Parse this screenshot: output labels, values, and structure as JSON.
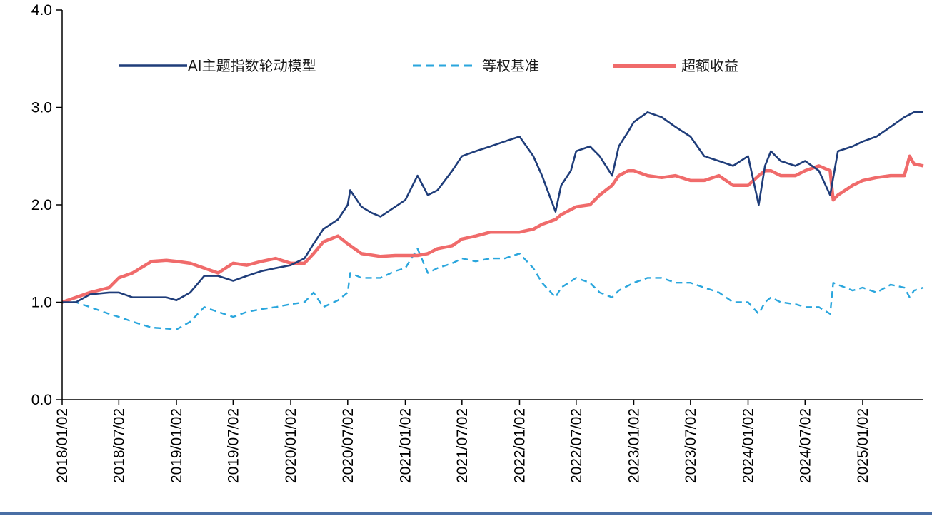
{
  "chart_data": {
    "type": "line",
    "title": "",
    "xlabel": "",
    "ylabel": "",
    "ylim": [
      0,
      4
    ],
    "y_ticks": [
      "0.0",
      "1.0",
      "2.0",
      "3.0",
      "4.0"
    ],
    "x_tick_labels": [
      "2018/01/02",
      "2018/07/02",
      "2019/01/02",
      "2019/07/02",
      "2020/01/02",
      "2020/07/02",
      "2021/01/02",
      "2021/07/02",
      "2022/01/02",
      "2022/07/02",
      "2023/01/02",
      "2023/07/02",
      "2024/01/02",
      "2024/07/02",
      "2025/01/02"
    ],
    "x_range": [
      "2018/01/02",
      "2025/07/15"
    ],
    "grid": false,
    "legend_position": "top",
    "series": [
      {
        "name": "AI主题指数轮动模型",
        "color": "#1f3d7a",
        "style": "solid",
        "x": [
          "2018/01/02",
          "2018/02/15",
          "2018/04/01",
          "2018/06/01",
          "2018/07/02",
          "2018/08/15",
          "2018/10/15",
          "2018/12/01",
          "2019/01/02",
          "2019/02/15",
          "2019/04/01",
          "2019/05/15",
          "2019/07/02",
          "2019/08/15",
          "2019/10/01",
          "2019/11/15",
          "2020/01/02",
          "2020/02/15",
          "2020/03/15",
          "2020/04/15",
          "2020/06/01",
          "2020/07/02",
          "2020/07/10",
          "2020/08/15",
          "2020/09/15",
          "2020/10/15",
          "2020/12/01",
          "2021/01/02",
          "2021/02/10",
          "2021/03/15",
          "2021/04/15",
          "2021/06/01",
          "2021/07/02",
          "2021/08/15",
          "2021/10/01",
          "2021/11/15",
          "2022/01/02",
          "2022/02/15",
          "2022/03/15",
          "2022/04/27",
          "2022/05/15",
          "2022/06/15",
          "2022/07/02",
          "2022/08/15",
          "2022/09/15",
          "2022/10/25",
          "2022/11/15",
          "2022/12/15",
          "2023/01/02",
          "2023/02/15",
          "2023/04/01",
          "2023/05/15",
          "2023/07/02",
          "2023/08/15",
          "2023/10/01",
          "2023/11/15",
          "2024/01/02",
          "2024/02/05",
          "2024/02/25",
          "2024/03/15",
          "2024/04/15",
          "2024/06/01",
          "2024/07/02",
          "2024/08/15",
          "2024/09/20",
          "2024/10/15",
          "2024/12/01",
          "2025/01/02",
          "2025/02/15",
          "2025/04/01",
          "2025/05/15",
          "2025/06/15",
          "2025/07/15"
        ],
        "values": [
          1.0,
          1.0,
          1.08,
          1.1,
          1.1,
          1.05,
          1.05,
          1.05,
          1.02,
          1.1,
          1.27,
          1.27,
          1.22,
          1.27,
          1.32,
          1.35,
          1.38,
          1.45,
          1.6,
          1.75,
          1.85,
          2.0,
          2.15,
          1.98,
          1.92,
          1.88,
          1.98,
          2.05,
          2.3,
          2.1,
          2.15,
          2.35,
          2.5,
          2.55,
          2.6,
          2.65,
          2.7,
          2.5,
          2.3,
          1.93,
          2.2,
          2.35,
          2.55,
          2.6,
          2.5,
          2.3,
          2.6,
          2.75,
          2.85,
          2.95,
          2.9,
          2.8,
          2.7,
          2.5,
          2.45,
          2.4,
          2.5,
          2.0,
          2.4,
          2.55,
          2.45,
          2.4,
          2.45,
          2.35,
          2.1,
          2.55,
          2.6,
          2.65,
          2.7,
          2.8,
          2.9,
          2.95,
          2.95
        ]
      },
      {
        "name": "等权基准",
        "color": "#2aa6dd",
        "style": "dashed",
        "x": [
          "2018/01/02",
          "2018/02/15",
          "2018/04/01",
          "2018/06/01",
          "2018/07/02",
          "2018/08/15",
          "2018/10/15",
          "2018/12/01",
          "2019/01/02",
          "2019/02/15",
          "2019/04/01",
          "2019/05/15",
          "2019/07/02",
          "2019/08/15",
          "2019/10/01",
          "2019/11/15",
          "2020/01/02",
          "2020/02/15",
          "2020/03/15",
          "2020/04/15",
          "2020/06/01",
          "2020/07/02",
          "2020/07/10",
          "2020/08/15",
          "2020/10/15",
          "2020/12/01",
          "2021/01/02",
          "2021/02/10",
          "2021/03/15",
          "2021/04/15",
          "2021/06/01",
          "2021/07/02",
          "2021/08/15",
          "2021/10/01",
          "2021/11/15",
          "2022/01/02",
          "2022/02/15",
          "2022/03/15",
          "2022/04/27",
          "2022/05/15",
          "2022/07/02",
          "2022/08/15",
          "2022/09/15",
          "2022/10/25",
          "2022/11/15",
          "2023/01/02",
          "2023/02/15",
          "2023/04/01",
          "2023/05/15",
          "2023/07/02",
          "2023/08/15",
          "2023/10/01",
          "2023/11/15",
          "2024/01/02",
          "2024/02/05",
          "2024/02/25",
          "2024/03/15",
          "2024/04/15",
          "2024/06/01",
          "2024/07/02",
          "2024/08/15",
          "2024/09/20",
          "2024/09/30",
          "2024/10/15",
          "2024/12/01",
          "2025/01/02",
          "2025/02/15",
          "2025/04/01",
          "2025/05/15",
          "2025/06/01",
          "2025/06/15",
          "2025/07/15"
        ],
        "values": [
          1.0,
          1.0,
          0.95,
          0.88,
          0.85,
          0.8,
          0.74,
          0.73,
          0.72,
          0.8,
          0.95,
          0.9,
          0.85,
          0.9,
          0.93,
          0.95,
          0.98,
          1.0,
          1.1,
          0.95,
          1.02,
          1.1,
          1.3,
          1.25,
          1.25,
          1.32,
          1.35,
          1.55,
          1.3,
          1.35,
          1.4,
          1.45,
          1.42,
          1.45,
          1.45,
          1.5,
          1.35,
          1.2,
          1.05,
          1.15,
          1.25,
          1.2,
          1.1,
          1.05,
          1.12,
          1.2,
          1.25,
          1.25,
          1.2,
          1.2,
          1.15,
          1.1,
          1.0,
          1.0,
          0.88,
          1.0,
          1.05,
          1.0,
          0.98,
          0.95,
          0.95,
          0.88,
          1.2,
          1.18,
          1.12,
          1.15,
          1.1,
          1.18,
          1.15,
          1.05,
          1.12,
          1.15
        ]
      },
      {
        "name": "超额收益",
        "color": "#f06b6b",
        "style": "solid",
        "x": [
          "2018/01/02",
          "2018/02/15",
          "2018/04/01",
          "2018/06/01",
          "2018/07/02",
          "2018/08/15",
          "2018/10/15",
          "2018/12/01",
          "2019/01/02",
          "2019/02/15",
          "2019/04/01",
          "2019/05/15",
          "2019/07/02",
          "2019/08/15",
          "2019/10/01",
          "2019/11/15",
          "2020/01/02",
          "2020/02/15",
          "2020/03/15",
          "2020/04/15",
          "2020/06/01",
          "2020/07/02",
          "2020/08/15",
          "2020/10/15",
          "2020/12/01",
          "2021/01/02",
          "2021/02/10",
          "2021/03/15",
          "2021/04/15",
          "2021/06/01",
          "2021/07/02",
          "2021/08/15",
          "2021/10/01",
          "2021/11/15",
          "2022/01/02",
          "2022/02/15",
          "2022/03/15",
          "2022/04/27",
          "2022/05/15",
          "2022/07/02",
          "2022/08/15",
          "2022/09/15",
          "2022/10/25",
          "2022/11/15",
          "2022/12/15",
          "2023/01/02",
          "2023/02/15",
          "2023/04/01",
          "2023/05/15",
          "2023/07/02",
          "2023/08/15",
          "2023/10/01",
          "2023/11/15",
          "2024/01/02",
          "2024/02/05",
          "2024/02/25",
          "2024/03/15",
          "2024/04/15",
          "2024/06/01",
          "2024/07/02",
          "2024/08/15",
          "2024/09/20",
          "2024/09/30",
          "2024/10/15",
          "2024/12/01",
          "2025/01/02",
          "2025/02/15",
          "2025/04/01",
          "2025/05/15",
          "2025/06/01",
          "2025/06/15",
          "2025/07/15"
        ],
        "values": [
          1.0,
          1.05,
          1.1,
          1.15,
          1.25,
          1.3,
          1.42,
          1.43,
          1.42,
          1.4,
          1.35,
          1.3,
          1.4,
          1.38,
          1.42,
          1.45,
          1.4,
          1.4,
          1.5,
          1.62,
          1.68,
          1.6,
          1.5,
          1.47,
          1.48,
          1.48,
          1.48,
          1.5,
          1.55,
          1.58,
          1.65,
          1.68,
          1.72,
          1.72,
          1.72,
          1.75,
          1.8,
          1.85,
          1.9,
          1.98,
          2.0,
          2.1,
          2.2,
          2.3,
          2.35,
          2.35,
          2.3,
          2.28,
          2.3,
          2.25,
          2.25,
          2.3,
          2.2,
          2.2,
          2.3,
          2.35,
          2.35,
          2.3,
          2.3,
          2.35,
          2.4,
          2.35,
          2.05,
          2.1,
          2.2,
          2.25,
          2.28,
          2.3,
          2.3,
          2.5,
          2.42,
          2.4
        ]
      }
    ]
  }
}
